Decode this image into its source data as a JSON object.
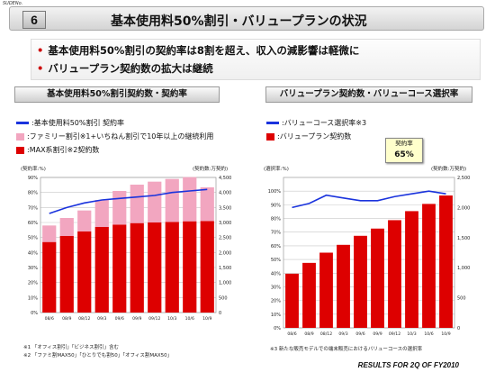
{
  "slide_label": "SUDENo.",
  "slide_number": "6",
  "title": "基本使用料50%割引・バリュープランの状況",
  "bullets": [
    "基本使用料50%割引の契約率は8割を超え、収入の減影響は軽微に",
    "バリュープラン契約数の拡大は継続"
  ],
  "colors": {
    "max_bar": "#dd0000",
    "family_bar": "#f2a6c0",
    "rate_line": "#1a33dd",
    "value_bar": "#dd0000",
    "value_line": "#1a33dd"
  },
  "left_panel": {
    "tab": "基本使用料50%割引契約数・契約率",
    "legend": [
      {
        "label": ":基本使用料50%割引 契約率",
        "icon": "blue-line"
      },
      {
        "label": ":ファミリー割引※1+いちねん割引で10年以上の継続利用",
        "icon": "pink-box"
      },
      {
        "label": ":MAX系割引※2契約数",
        "icon": "red-box"
      }
    ],
    "y_left_label": "(契約率:%)",
    "y_right_label": "(契約数:万契約)",
    "footnotes": [
      "※1 「オフィス割引」「ビジネス割引」含む",
      "※2 「ファミ割MAX50」「ひとりでも割50」「オフィス割MAX50」"
    ]
  },
  "right_panel": {
    "tab": "バリュープラン契約数・バリューコース選択率",
    "legend": [
      {
        "label": ":バリューコース選択率※3",
        "icon": "blue-line"
      },
      {
        "label": ":バリュープラン契約数",
        "icon": "red-box"
      }
    ],
    "callout_label": "契約率",
    "callout_value": "65%",
    "y_left_label": "(選択率:%)",
    "y_right_label": "(契約数:万契約)",
    "footnotes": [
      "※3 新たな販売モデルでの端末販売におけるバリューコースの選択率"
    ]
  },
  "footer": "RESULTS FOR 2Q OF FY2010",
  "chart_data": [
    {
      "type": "bar",
      "stacked": true,
      "categories": [
        "08/6",
        "08/9",
        "08/12",
        "09/3",
        "09/6",
        "09/9",
        "09/12",
        "10/3",
        "10/6",
        "10/9"
      ],
      "series": [
        {
          "name": "MAX系割引※2契約数",
          "axis": "right",
          "values": [
            2350,
            2550,
            2700,
            2850,
            2930,
            2980,
            3000,
            3020,
            3040,
            3050
          ]
        },
        {
          "name": "ファミリー割引※1+いちねん割引で10年以上の継続利用",
          "axis": "right",
          "values": [
            550,
            600,
            700,
            900,
            1120,
            1280,
            1360,
            1430,
            1470,
            1120
          ]
        },
        {
          "name": "基本使用料50%割引 契約率",
          "type": "line",
          "axis": "left",
          "values": [
            66,
            70,
            73,
            75,
            76,
            77,
            78,
            80,
            81,
            82
          ]
        }
      ],
      "y_left": {
        "label": "(契約率:%)",
        "ylim": [
          0,
          90
        ],
        "ticks": [
          0,
          10,
          20,
          30,
          40,
          50,
          60,
          70,
          80,
          90
        ]
      },
      "y_right": {
        "label": "(契約数:万契約)",
        "ylim": [
          0,
          4500
        ],
        "ticks": [
          0,
          500,
          1000,
          1500,
          2000,
          2500,
          3000,
          3500,
          4000,
          4500
        ]
      },
      "grid": true
    },
    {
      "type": "bar",
      "categories": [
        "08/6",
        "08/9",
        "08/12",
        "09/3",
        "09/6",
        "09/9",
        "09/12",
        "10/3",
        "10/6",
        "10/9"
      ],
      "series": [
        {
          "name": "バリュープラン契約数",
          "axis": "right",
          "values": [
            900,
            1080,
            1250,
            1380,
            1530,
            1650,
            1790,
            1940,
            2060,
            2200
          ]
        },
        {
          "name": "バリューコース選択率※3",
          "type": "line",
          "axis": "left",
          "values": [
            88,
            91,
            97,
            95,
            93,
            93,
            96,
            98,
            100,
            98
          ]
        }
      ],
      "y_left": {
        "label": "(選択率:%)",
        "ylim": [
          0,
          110
        ],
        "ticks": [
          0,
          10,
          20,
          30,
          40,
          50,
          60,
          70,
          80,
          90,
          100
        ]
      },
      "y_right": {
        "label": "(契約数:万契約)",
        "ylim": [
          0,
          2500
        ],
        "ticks": [
          0,
          500,
          1000,
          1500,
          2000,
          2500
        ]
      },
      "grid": true
    }
  ]
}
